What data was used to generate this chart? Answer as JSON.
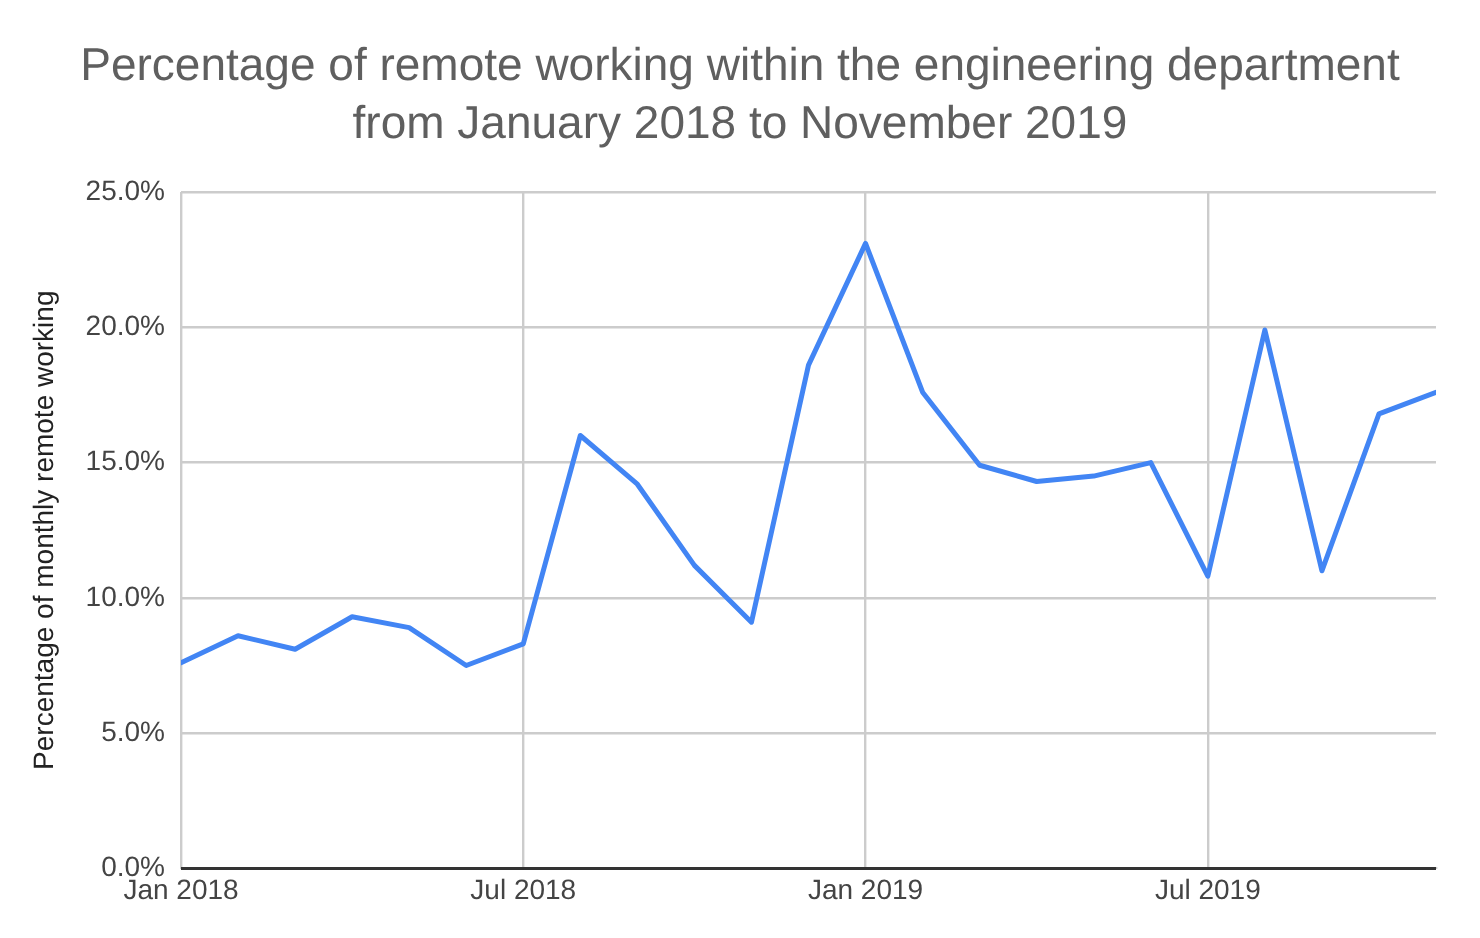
{
  "chart_data": {
    "type": "line",
    "title": "Percentage of remote working within the engineering department from January 2018 to November 2019",
    "ylabel": "Percentage of monthly remote working",
    "x": [
      "2018-01",
      "2018-02",
      "2018-03",
      "2018-04",
      "2018-05",
      "2018-06",
      "2018-07",
      "2018-08",
      "2018-09",
      "2018-10",
      "2018-11",
      "2018-12",
      "2019-01",
      "2019-02",
      "2019-03",
      "2019-04",
      "2019-05",
      "2019-06",
      "2019-07",
      "2019-08",
      "2019-09",
      "2019-10",
      "2019-11"
    ],
    "series": [
      {
        "color": "#4285f4",
        "values": [
          7.6,
          8.6,
          8.1,
          9.3,
          8.9,
          7.5,
          8.3,
          16.0,
          14.2,
          11.2,
          9.1,
          18.6,
          23.1,
          17.6,
          14.9,
          14.3,
          14.5,
          15.0,
          10.8,
          19.9,
          11.0,
          16.8,
          17.6
        ]
      }
    ],
    "xlim": [
      "2018-01",
      "2019-11"
    ],
    "xticks": [
      {
        "value": "2018-01",
        "label": "Jan 2018"
      },
      {
        "value": "2018-07",
        "label": "Jul 2018"
      },
      {
        "value": "2019-01",
        "label": "Jan 2019"
      },
      {
        "value": "2019-07",
        "label": "Jul 2019"
      }
    ],
    "ylim": [
      0,
      25
    ],
    "yticks": [
      {
        "value": 0,
        "label": "0.0%"
      },
      {
        "value": 5,
        "label": "5.0%"
      },
      {
        "value": 10,
        "label": "10.0%"
      },
      {
        "value": 15,
        "label": "15.0%"
      },
      {
        "value": 20,
        "label": "20.0%"
      },
      {
        "value": 25,
        "label": "25.0%"
      }
    ],
    "grid": true,
    "legend": false,
    "marker": "none",
    "line_style": "solid"
  }
}
